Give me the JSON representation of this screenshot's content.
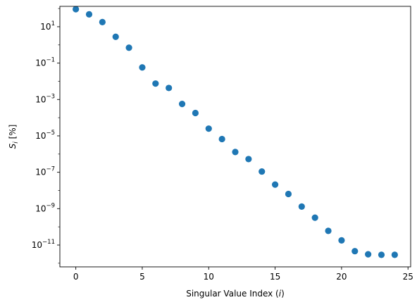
{
  "chart_data": {
    "type": "scatter",
    "title": "",
    "xlabel_parts": [
      "Singular Value Index (",
      "i",
      ")"
    ],
    "ylabel_parts": [
      "S",
      "i",
      " [%]"
    ],
    "yscale": "log",
    "xlim": [
      -1.2,
      25.2
    ],
    "ylim_log10": [
      -12.2,
      2.12
    ],
    "grid": false,
    "legend": "none",
    "marker_color": "#1f77b4",
    "x_ticks": [
      {
        "value": 0,
        "label": "0"
      },
      {
        "value": 5,
        "label": "5"
      },
      {
        "value": 10,
        "label": "10"
      },
      {
        "value": 15,
        "label": "15"
      },
      {
        "value": 20,
        "label": "20"
      },
      {
        "value": 25,
        "label": "25"
      }
    ],
    "y_ticks": [
      {
        "exp": 1,
        "base": "10",
        "sup": "1"
      },
      {
        "exp": -1,
        "base": "10",
        "sup": "−1"
      },
      {
        "exp": -3,
        "base": "10",
        "sup": "−3"
      },
      {
        "exp": -5,
        "base": "10",
        "sup": "−5"
      },
      {
        "exp": -7,
        "base": "10",
        "sup": "−7"
      },
      {
        "exp": -9,
        "base": "10",
        "sup": "−9"
      },
      {
        "exp": -11,
        "base": "10",
        "sup": "−11"
      }
    ],
    "series": [
      {
        "x": [
          0,
          1,
          2,
          3,
          4,
          5,
          6,
          7,
          8,
          9,
          10,
          11,
          12,
          13,
          14,
          15,
          16,
          17,
          18,
          19,
          20,
          21,
          22,
          23,
          24
        ],
        "y": [
          92,
          48,
          18,
          2.8,
          0.7,
          0.058,
          0.0075,
          0.0043,
          0.00057,
          0.00018,
          2.5e-05,
          6.7e-06,
          1.3e-06,
          5.3e-07,
          1.1e-07,
          2.1e-08,
          6.4e-09,
          1.3e-09,
          3.2e-10,
          6e-11,
          1.8e-11,
          4.6e-12,
          3.1e-12,
          2.9e-12,
          2.9e-12
        ]
      }
    ]
  }
}
